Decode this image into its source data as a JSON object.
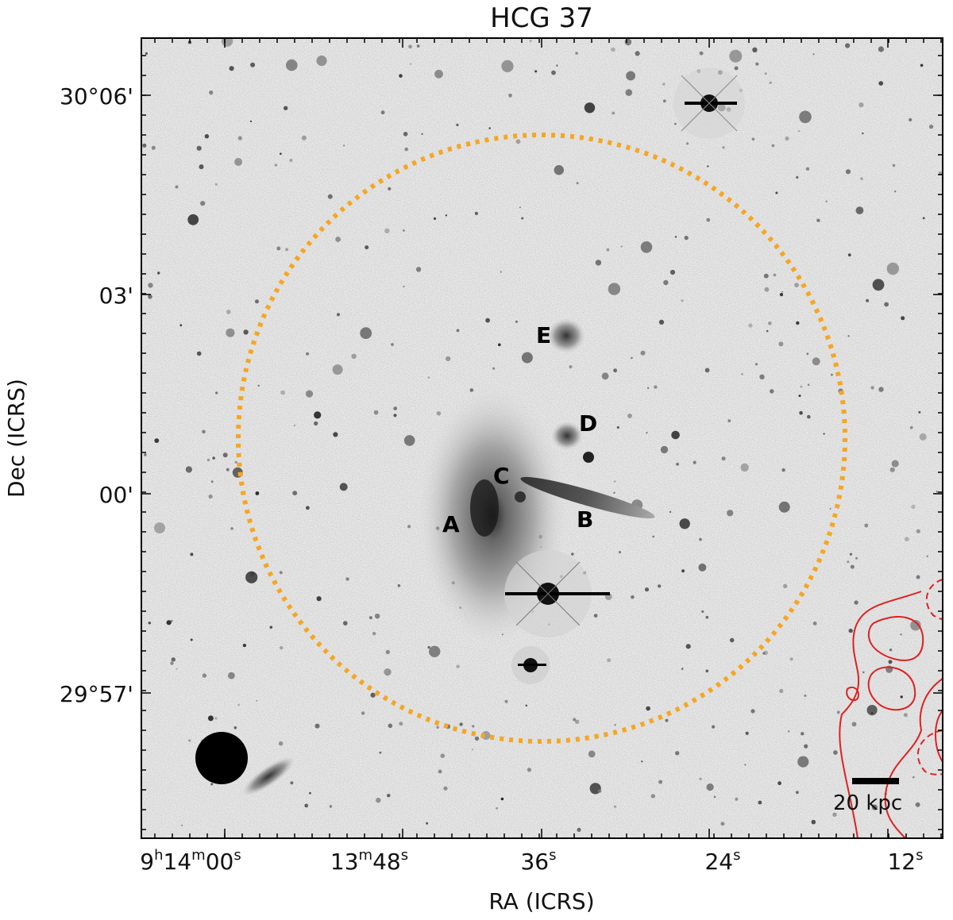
{
  "title": "HCG 37",
  "xlabel": "RA (ICRS)",
  "ylabel": "Dec (ICRS)",
  "ra_ticks": [
    {
      "h": "9",
      "hs": "h",
      "m": "14",
      "ms": "m",
      "s": "00",
      "ss": "s"
    },
    {
      "h": "",
      "hs": "",
      "m": "13",
      "ms": "m",
      "s": "48",
      "ss": "s"
    },
    {
      "h": "",
      "hs": "",
      "m": "",
      "ms": "",
      "s": "36",
      "ss": "s"
    },
    {
      "h": "",
      "hs": "",
      "m": "",
      "ms": "",
      "s": "24",
      "ss": "s"
    },
    {
      "h": "",
      "hs": "",
      "m": "",
      "ms": "",
      "s": "12",
      "ss": "s"
    }
  ],
  "dec_ticks": [
    "30°06'",
    "03'",
    "00'",
    "29°57'"
  ],
  "galaxy_labels": [
    "A",
    "B",
    "C",
    "D",
    "E"
  ],
  "scale_bar_label": "20 kpc",
  "colors": {
    "circle": "#f5a623",
    "contours": "#e02020",
    "frame": "#000000"
  },
  "icons": {
    "beam": "black-filled-circle",
    "scale_bar": "black-horizontal-bar"
  }
}
